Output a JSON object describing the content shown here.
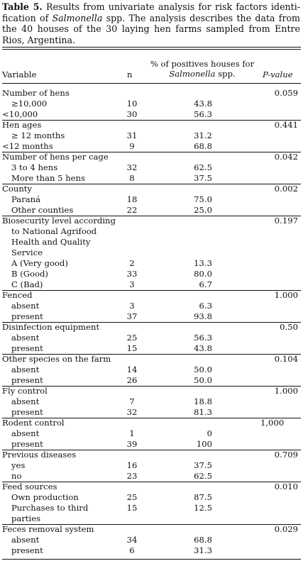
{
  "caption": {
    "label": "Table 5.",
    "text_before": "Results from univariate analysis for risk factors identi-fication of ",
    "italic": "Salmonella",
    "text_after": " spp. The analysis describes the data from the 40 houses of the 30 laying hen farms sampled from Entre Rios, Argentina."
  },
  "header": {
    "variable": "Variable",
    "n": "n",
    "pct_line1": "% of positives houses for",
    "pct_italic": "Salmonella",
    "pct_after": " spp.",
    "pvalue": "P-value"
  },
  "rows": [
    {
      "var": "Number of hens",
      "indent": false,
      "n": "",
      "pct": "",
      "p": "0.059"
    },
    {
      "var": "≥10,000",
      "indent": true,
      "n": "10",
      "pct": "43.8",
      "p": ""
    },
    {
      "var": "<10,000",
      "indent": false,
      "n": "30",
      "pct": "56.3",
      "p": ""
    },
    {
      "var": "Hen ages",
      "indent": false,
      "n": "",
      "pct": "",
      "p": "0.441"
    },
    {
      "var": "≥ 12 months",
      "indent": true,
      "n": "31",
      "pct": "31.2",
      "p": ""
    },
    {
      "var": "<12 months",
      "indent": false,
      "n": "9",
      "pct": "68.8",
      "p": ""
    },
    {
      "var": "Number of hens per cage",
      "indent": false,
      "n": "",
      "pct": "",
      "p": "0.042"
    },
    {
      "var": "3 to 4 hens",
      "indent": true,
      "n": "32",
      "pct": "62.5",
      "p": ""
    },
    {
      "var": "More than 5 hens",
      "indent": true,
      "n": "8",
      "pct": "37.5",
      "p": ""
    },
    {
      "var": "County",
      "indent": false,
      "n": "",
      "pct": "",
      "p": "0.002"
    },
    {
      "var": "Paraná",
      "indent": true,
      "n": "18",
      "pct": "75.0",
      "p": ""
    },
    {
      "var": "Other counties",
      "indent": true,
      "n": "22",
      "pct": "25.0",
      "p": ""
    },
    {
      "var": "Biosecurity level according",
      "indent": false,
      "n": "",
      "pct": "",
      "p": "0.197"
    },
    {
      "var": "to National Agrifood",
      "indent": true,
      "n": "",
      "pct": "",
      "p": ""
    },
    {
      "var": "Health and Quality",
      "indent": true,
      "n": "",
      "pct": "",
      "p": ""
    },
    {
      "var": "Service",
      "indent": true,
      "n": "",
      "pct": "",
      "p": ""
    },
    {
      "var": "A (Very good)",
      "indent": true,
      "n": "2",
      "pct": "13.3",
      "p": ""
    },
    {
      "var": "B (Good)",
      "indent": true,
      "n": "33",
      "pct": "80.0",
      "p": ""
    },
    {
      "var": "C (Bad)",
      "indent": true,
      "n": "3",
      "pct": "6.7",
      "p": ""
    },
    {
      "var": "Fenced",
      "indent": false,
      "n": "",
      "pct": "",
      "p": "1.000"
    },
    {
      "var": "absent",
      "indent": true,
      "n": "3",
      "pct": "6.3",
      "p": ""
    },
    {
      "var": "present",
      "indent": true,
      "n": "37",
      "pct": "93.8",
      "p": ""
    },
    {
      "var": "Disinfection equipment",
      "indent": false,
      "n": "",
      "pct": "",
      "p": "0.50"
    },
    {
      "var": "absent",
      "indent": true,
      "n": "25",
      "pct": "56.3",
      "p": ""
    },
    {
      "var": "present",
      "indent": true,
      "n": "15",
      "pct": "43.8",
      "p": ""
    },
    {
      "var": "Other species on the farm",
      "indent": false,
      "n": "",
      "pct": "",
      "p": "0.104"
    },
    {
      "var": "absent",
      "indent": true,
      "n": "14",
      "pct": "50.0",
      "p": ""
    },
    {
      "var": "present",
      "indent": true,
      "n": "26",
      "pct": "50.0",
      "p": ""
    },
    {
      "var": "Fly control",
      "indent": false,
      "n": "",
      "pct": "",
      "p": "1.000"
    },
    {
      "var": "absent",
      "indent": true,
      "n": "7",
      "pct": "18.8",
      "p": ""
    },
    {
      "var": "present",
      "indent": true,
      "n": "32",
      "pct": "81.3",
      "p": ""
    },
    {
      "var": "Rodent control",
      "indent": false,
      "n": "",
      "pct": "",
      "p": "1,000",
      "pleft": true
    },
    {
      "var": "absent",
      "indent": true,
      "n": "1",
      "pct": "0",
      "p": ""
    },
    {
      "var": "present",
      "indent": true,
      "n": "39",
      "pct": "100",
      "p": ""
    },
    {
      "var": "Previous diseases",
      "indent": false,
      "n": "",
      "pct": "",
      "p": "0.709"
    },
    {
      "var": "yes",
      "indent": true,
      "n": "16",
      "pct": "37.5",
      "p": ""
    },
    {
      "var": "no",
      "indent": true,
      "n": "23",
      "pct": "62.5",
      "p": ""
    },
    {
      "var": "Feed sources",
      "indent": false,
      "n": "",
      "pct": "",
      "p": "0.010"
    },
    {
      "var": "Own production",
      "indent": true,
      "n": "25",
      "pct": "87.5",
      "p": ""
    },
    {
      "var": "Purchases to third",
      "indent": true,
      "n": "15",
      "pct": "12.5",
      "p": ""
    },
    {
      "var": "parties",
      "indent": true,
      "n": "",
      "pct": "",
      "p": ""
    },
    {
      "var": "Feces removal system",
      "indent": false,
      "n": "",
      "pct": "",
      "p": "0.029"
    },
    {
      "var": "absent",
      "indent": true,
      "n": "34",
      "pct": "68.8",
      "p": ""
    },
    {
      "var": "present",
      "indent": true,
      "n": "6",
      "pct": "31.3",
      "p": ""
    }
  ]
}
